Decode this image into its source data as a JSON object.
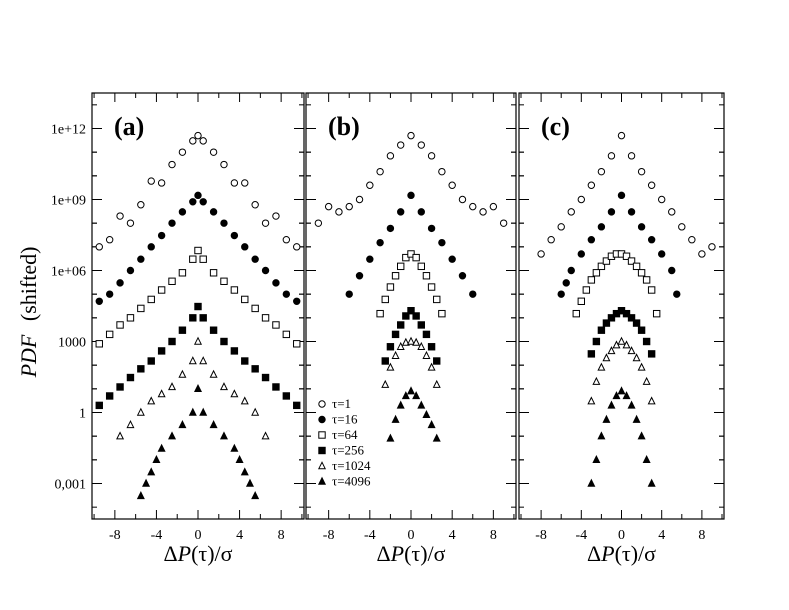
{
  "figure": {
    "ylabel_italic": "PDF",
    "ylabel_rest": "(shifted)",
    "y_ticks": [
      "1e+12",
      "1e+09",
      "1e+06",
      "1000",
      "1",
      "0,001"
    ]
  },
  "legend": {
    "entries": [
      "τ=1",
      "τ=16",
      "τ=64",
      "τ=256",
      "τ=1024",
      "τ=4096"
    ]
  },
  "chart_data": [
    {
      "type": "scatter",
      "panel_label": "(a)",
      "xlabel": "ΔP(τ)/σ",
      "xlim": [
        -10.2,
        10.2
      ],
      "ylim_log10": [
        -4.5,
        13.5
      ],
      "x_ticks": [
        -8,
        -4,
        0,
        4,
        8
      ],
      "yscale": "log",
      "series": [
        {
          "name": "τ=1",
          "marker": "open-circle",
          "x": [
            -9.5,
            -8.5,
            -7.5,
            -6.5,
            -5.5,
            -4.5,
            -3.5,
            -2.5,
            -1.5,
            -0.5,
            0,
            0.5,
            1.5,
            2.5,
            3.5,
            4.5,
            5.5,
            6.5,
            7.5,
            8.5,
            9.5
          ],
          "y": [
            10000000.0,
            20000000.0,
            200000000.0,
            100000000.0,
            600000000.0,
            6000000000.0,
            5000000000.0,
            30000000000.0,
            100000000000.0,
            300000000000.0,
            500000000000.0,
            300000000000.0,
            100000000000.0,
            30000000000.0,
            5000000000.0,
            5000000000.0,
            600000000.0,
            100000000.0,
            200000000.0,
            20000000.0,
            10000000.0
          ]
        },
        {
          "name": "τ=16",
          "marker": "filled-circle",
          "x": [
            -9.5,
            -8.5,
            -7.5,
            -6.5,
            -5.5,
            -4.5,
            -3.5,
            -2.5,
            -1.5,
            -0.5,
            0,
            0.5,
            1.5,
            2.5,
            3.5,
            4.5,
            5.5,
            6.5,
            7.5,
            8.5,
            9.5
          ],
          "y": [
            50000.0,
            100000.0,
            300000.0,
            1000000.0,
            3000000.0,
            10000000.0,
            30000000.0,
            100000000.0,
            300000000.0,
            800000000.0,
            1500000000.0,
            800000000.0,
            300000000.0,
            100000000.0,
            30000000.0,
            10000000.0,
            3000000.0,
            1000000.0,
            300000.0,
            100000.0,
            50000.0
          ]
        },
        {
          "name": "τ=64",
          "marker": "open-square",
          "x": [
            -9.5,
            -8.5,
            -7.5,
            -6.5,
            -5.5,
            -4.5,
            -3.5,
            -2.5,
            -1.5,
            -0.5,
            0,
            0.5,
            1.5,
            2.5,
            3.5,
            4.5,
            5.5,
            6.5,
            7.5,
            8.5,
            9.5
          ],
          "y": [
            800,
            2000.0,
            5000.0,
            10000.0,
            25000.0,
            60000.0,
            150000.0,
            350000.0,
            800000.0,
            3000000.0,
            7000000.0,
            3000000.0,
            800000.0,
            350000.0,
            150000.0,
            60000.0,
            25000.0,
            10000.0,
            5000.0,
            2000.0,
            800
          ]
        },
        {
          "name": "τ=256",
          "marker": "filled-square",
          "x": [
            -9.5,
            -8.5,
            -7.5,
            -6.5,
            -5.5,
            -4.5,
            -3.5,
            -2.5,
            -1.5,
            -0.5,
            0,
            0.5,
            1.5,
            2.5,
            3.5,
            4.5,
            5.5,
            6.5,
            7.5,
            8.5,
            9.5
          ],
          "y": [
            2,
            5,
            12,
            30,
            70,
            150,
            400,
            1000,
            3000,
            10000.0,
            30000.0,
            10000.0,
            3000,
            1000,
            400,
            150,
            70,
            30,
            12,
            5,
            2
          ]
        },
        {
          "name": "τ=1024",
          "marker": "open-triangle",
          "x": [
            -7.5,
            -6.5,
            -5.5,
            -4.5,
            -3.5,
            -2.5,
            -1.5,
            -0.5,
            0,
            0.5,
            1.5,
            2.5,
            3.5,
            4.5,
            5.5,
            6.5
          ],
          "y": [
            0.1,
            0.3,
            1,
            3,
            6,
            12,
            40,
            150,
            1000,
            150,
            40,
            12,
            6,
            3,
            1,
            0.1
          ]
        },
        {
          "name": "τ=4096",
          "marker": "filled-triangle",
          "x": [
            -5.5,
            -5,
            -4.5,
            -4,
            -3.5,
            -2.5,
            -1.5,
            -0.5,
            0,
            0.5,
            1.5,
            2.5,
            3.5,
            4,
            4.5,
            5,
            5.5
          ],
          "y": [
            0.0003,
            0.001,
            0.003,
            0.01,
            0.03,
            0.1,
            0.3,
            1,
            10,
            1,
            0.3,
            0.1,
            0.03,
            0.01,
            0.003,
            0.001,
            0.0003
          ]
        }
      ]
    },
    {
      "type": "scatter",
      "panel_label": "(b)",
      "xlabel": "ΔP(τ)/σ",
      "xlim": [
        -10.2,
        10.2
      ],
      "ylim_log10": [
        -4.5,
        13.5
      ],
      "x_ticks": [
        -8,
        -4,
        0,
        4,
        8
      ],
      "yscale": "log",
      "series": [
        {
          "name": "τ=1",
          "marker": "open-circle",
          "x": [
            -9,
            -8,
            -7,
            -6,
            -5,
            -4,
            -3,
            -2,
            -1,
            0,
            1,
            2,
            3,
            4,
            5,
            6,
            7,
            8,
            9
          ],
          "y": [
            100000000.0,
            500000000.0,
            300000000.0,
            500000000.0,
            1000000000.0,
            4000000000.0,
            15000000000.0,
            70000000000.0,
            200000000000.0,
            500000000000.0,
            200000000000.0,
            70000000000.0,
            15000000000.0,
            4000000000.0,
            1000000000.0,
            500000000.0,
            300000000.0,
            500000000.0,
            100000000.0
          ]
        },
        {
          "name": "τ=16",
          "marker": "filled-circle",
          "x": [
            -6,
            -5,
            -4,
            -3,
            -2,
            -1,
            0,
            1,
            2,
            3,
            4,
            5,
            6
          ],
          "y": [
            100000.0,
            600000.0,
            3000000.0,
            15000000.0,
            60000000.0,
            300000000.0,
            1500000000.0,
            300000000.0,
            60000000.0,
            15000000.0,
            3000000.0,
            600000.0,
            100000.0
          ]
        },
        {
          "name": "τ=64",
          "marker": "open-square",
          "x": [
            -3,
            -2.5,
            -2,
            -1.5,
            -1,
            -0.5,
            0,
            0.5,
            1,
            1.5,
            2,
            2.5,
            3
          ],
          "y": [
            15000.0,
            60000.0,
            200000.0,
            600000.0,
            1500000.0,
            3500000.0,
            5000000.0,
            3500000.0,
            1500000.0,
            600000.0,
            200000.0,
            60000.0,
            15000.0
          ]
        },
        {
          "name": "τ=256",
          "marker": "filled-square",
          "x": [
            -2.5,
            -2,
            -1.5,
            -1,
            -0.5,
            0,
            0.5,
            1,
            1.5,
            2,
            2.5
          ],
          "y": [
            150,
            600,
            2000,
            5000,
            12000.0,
            20000.0,
            12000.0,
            5000,
            2000,
            600,
            150
          ]
        },
        {
          "name": "τ=1024",
          "marker": "open-triangle",
          "x": [
            -2.5,
            -2,
            -1.5,
            -1,
            -0.5,
            0,
            0.5,
            1,
            1.5,
            2,
            2.5
          ],
          "y": [
            15,
            80,
            250,
            600,
            900,
            1000,
            900,
            600,
            250,
            80,
            15
          ]
        },
        {
          "name": "τ=4096",
          "marker": "filled-triangle",
          "x": [
            -2,
            -1.5,
            -1,
            -0.5,
            0,
            0.5,
            1,
            1.5,
            2,
            2.5
          ],
          "y": [
            0.08,
            0.5,
            2,
            5,
            8,
            5,
            2,
            0.8,
            0.3,
            0.08
          ]
        }
      ]
    },
    {
      "type": "scatter",
      "panel_label": "(c)",
      "xlabel": "ΔP(τ)/σ",
      "xlim": [
        -10.2,
        10.2
      ],
      "ylim_log10": [
        -4.5,
        13.5
      ],
      "x_ticks": [
        -8,
        -4,
        0,
        4,
        8
      ],
      "yscale": "log",
      "series": [
        {
          "name": "τ=1",
          "marker": "open-circle",
          "x": [
            -8,
            -7,
            -6,
            -5,
            -4,
            -3,
            -2,
            -1,
            0,
            1,
            2,
            3,
            4,
            5,
            6,
            7,
            8,
            9
          ],
          "y": [
            5000000.0,
            20000000.0,
            70000000.0,
            300000000.0,
            1000000000.0,
            4000000000.0,
            15000000000.0,
            70000000000.0,
            500000000000.0,
            70000000000.0,
            15000000000.0,
            4000000000.0,
            1000000000.0,
            300000000.0,
            70000000.0,
            20000000.0,
            5000000.0,
            10000000.0
          ]
        },
        {
          "name": "τ=16",
          "marker": "filled-circle",
          "x": [
            -6,
            -5.5,
            -5,
            -4,
            -3,
            -2,
            -1,
            0,
            1,
            2,
            3,
            4,
            5,
            5.5
          ],
          "y": [
            100000.0,
            300000.0,
            1000000.0,
            5000000.0,
            20000000.0,
            70000000.0,
            300000000.0,
            1500000000.0,
            300000000.0,
            70000000.0,
            20000000.0,
            5000000.0,
            1000000.0,
            100000.0
          ]
        },
        {
          "name": "τ=64",
          "marker": "open-square",
          "x": [
            -4.5,
            -4,
            -3.5,
            -3,
            -2.5,
            -2,
            -1.5,
            -1,
            -0.5,
            0,
            0.5,
            1,
            1.5,
            2,
            2.5,
            3,
            3.5
          ],
          "y": [
            15000.0,
            50000.0,
            150000.0,
            400000.0,
            800000.0,
            1500000.0,
            2500000.0,
            4000000.0,
            5000000.0,
            5000000.0,
            4000000.0,
            2500000.0,
            1500000.0,
            800000.0,
            400000.0,
            150000.0,
            15000.0
          ]
        },
        {
          "name": "τ=256",
          "marker": "filled-square",
          "x": [
            -3,
            -2.5,
            -2,
            -1.5,
            -1,
            -0.5,
            0,
            0.5,
            1,
            1.5,
            2,
            2.5,
            3
          ],
          "y": [
            300,
            1000,
            3000,
            6000,
            10000.0,
            15000.0,
            20000.0,
            15000.0,
            10000.0,
            6000,
            3000,
            1000,
            300
          ]
        },
        {
          "name": "τ=1024",
          "marker": "open-triangle",
          "x": [
            -3,
            -2.5,
            -2,
            -1.5,
            -1,
            -0.5,
            0,
            0.5,
            1,
            1.5,
            2,
            2.5,
            3
          ],
          "y": [
            3,
            20,
            80,
            200,
            400,
            700,
            1000,
            700,
            400,
            200,
            80,
            20,
            3
          ]
        },
        {
          "name": "τ=4096",
          "marker": "filled-triangle",
          "x": [
            -3,
            -2.5,
            -2,
            -1.5,
            -1,
            -0.5,
            0,
            0.5,
            1,
            1.5,
            2,
            2.5,
            3
          ],
          "y": [
            0.001,
            0.01,
            0.1,
            0.5,
            2,
            5,
            8,
            5,
            2,
            0.5,
            0.1,
            0.01,
            0.001
          ]
        }
      ]
    }
  ]
}
